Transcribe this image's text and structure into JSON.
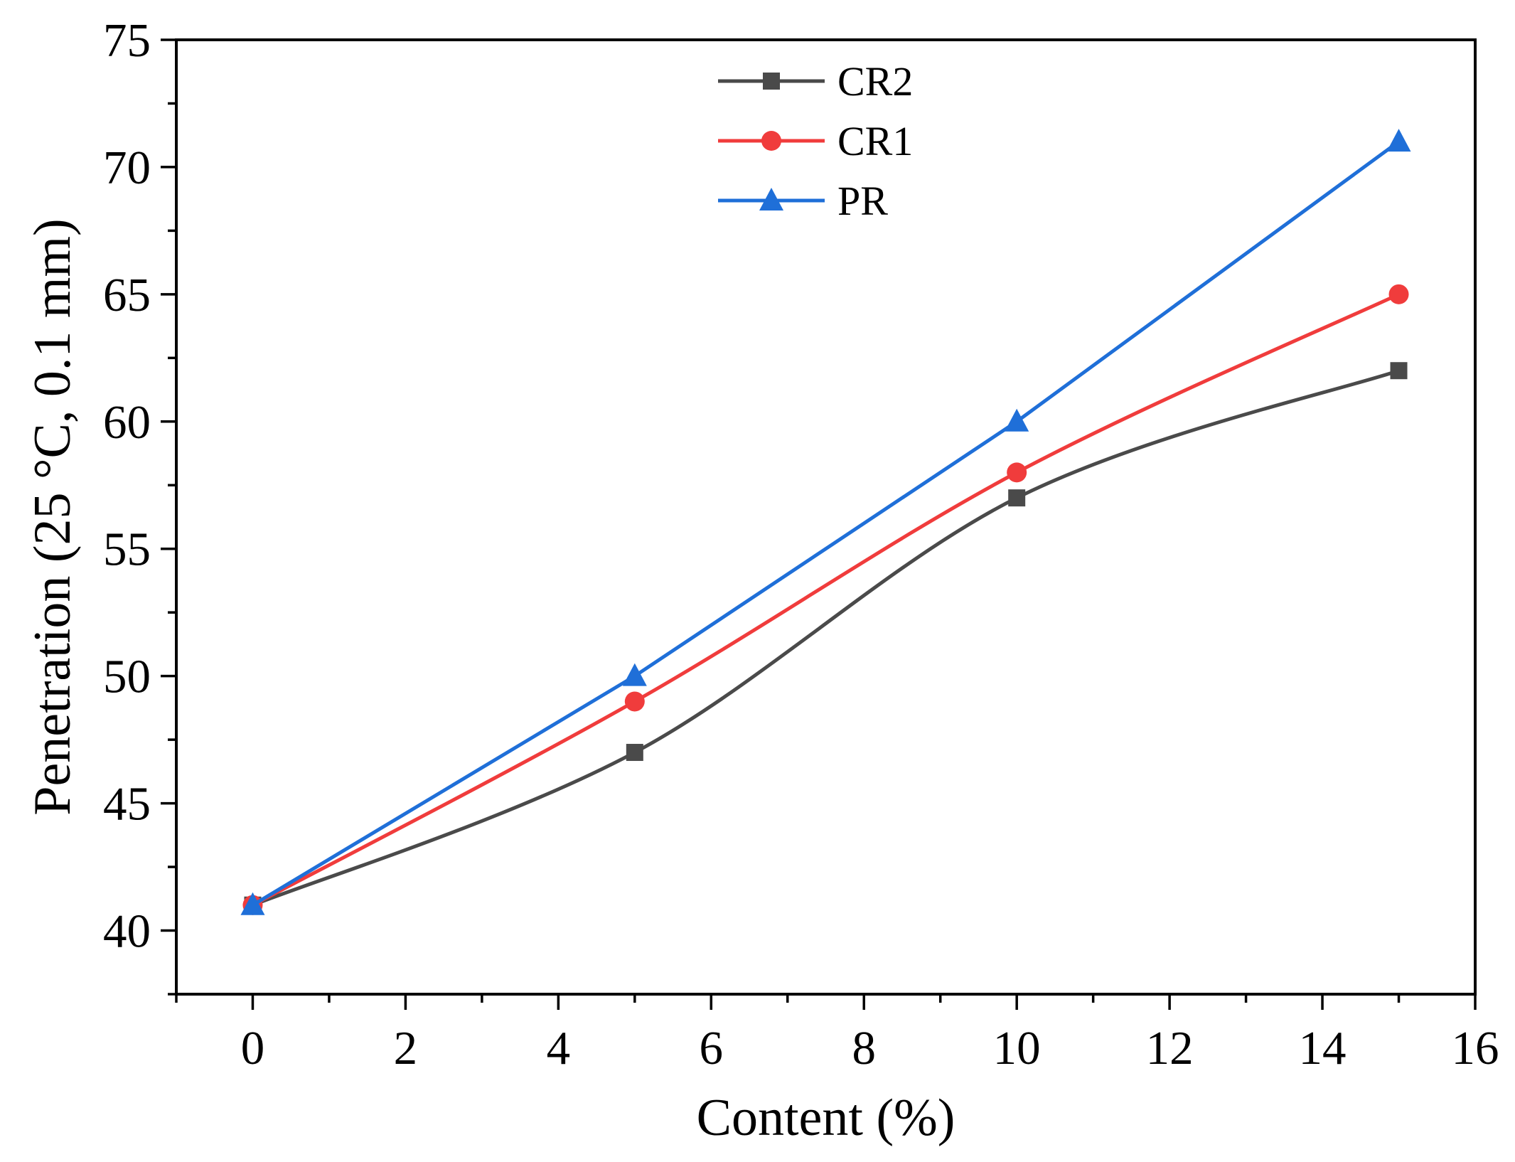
{
  "chart_data": {
    "type": "line",
    "title": "",
    "xlabel": "Content (%)",
    "ylabel": "Penetration (25 °C, 0.1 mm)",
    "xlim": [
      -1,
      16
    ],
    "ylim": [
      37.5,
      75
    ],
    "xticks": [
      0,
      2,
      4,
      6,
      8,
      10,
      12,
      14,
      16
    ],
    "yticks": [
      40,
      45,
      50,
      55,
      60,
      65,
      70,
      75
    ],
    "grid": false,
    "legend_position": "top-center",
    "x": [
      0,
      5,
      10,
      15
    ],
    "series": [
      {
        "name": "CR2",
        "values": [
          41,
          47,
          57,
          62
        ],
        "color": "#4a4a4a",
        "marker": "square",
        "smooth": true
      },
      {
        "name": "CR1",
        "values": [
          41,
          49,
          58,
          65
        ],
        "color": "#f03c3c",
        "marker": "circle",
        "smooth": true
      },
      {
        "name": "PR",
        "values": [
          41,
          50,
          60,
          71
        ],
        "color": "#1f6fd8",
        "marker": "triangle",
        "smooth": false
      }
    ]
  }
}
